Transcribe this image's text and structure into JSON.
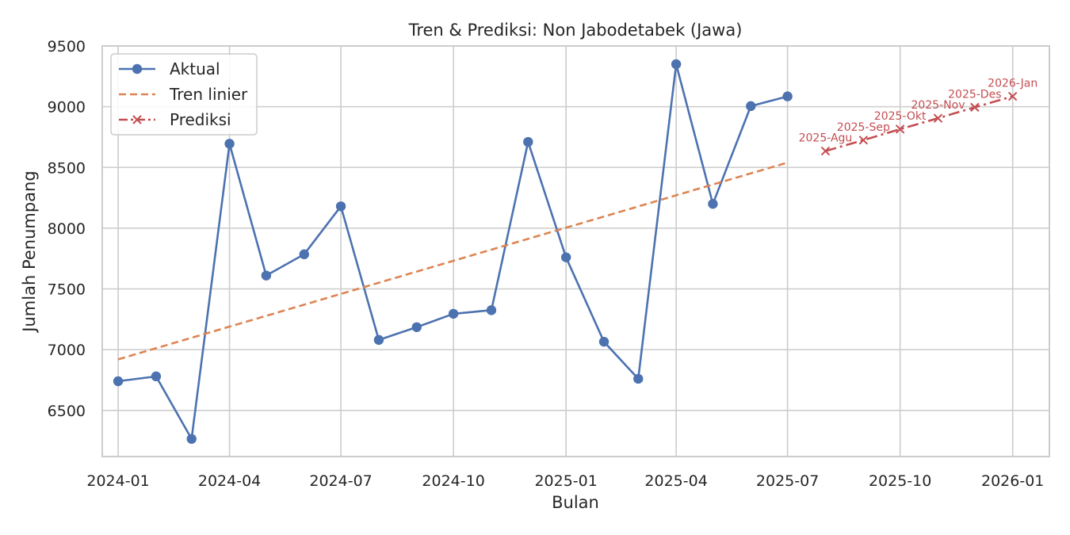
{
  "chart_data": {
    "type": "line",
    "title": "Tren & Prediksi: Non Jabodetabek (Jawa)",
    "xlabel": "Bulan",
    "ylabel": "Jumlah Penumpang",
    "ylim": [
      6120,
      9500
    ],
    "xlim": [
      "2023-12-19",
      "2026-01-31"
    ],
    "grid": true,
    "legend_position": "top-left",
    "x_ticks": [
      "2024-01",
      "2024-04",
      "2024-07",
      "2024-10",
      "2025-01",
      "2025-04",
      "2025-07",
      "2025-10",
      "2026-01"
    ],
    "y_ticks": [
      6500,
      7000,
      7500,
      8000,
      8500,
      9000,
      9500
    ],
    "series": [
      {
        "name": "Aktual",
        "style": "solid-marker-circle",
        "color": "#4c72b0",
        "x": [
          "2024-01",
          "2024-02",
          "2024-03",
          "2024-04",
          "2024-05",
          "2024-06",
          "2024-07",
          "2024-08",
          "2024-09",
          "2024-10",
          "2024-11",
          "2024-12",
          "2025-01",
          "2025-02",
          "2025-03",
          "2025-04",
          "2025-05",
          "2025-06",
          "2025-07"
        ],
        "values": [
          6740,
          6780,
          6265,
          8695,
          7610,
          7785,
          8180,
          7080,
          7185,
          7295,
          7325,
          8710,
          7760,
          7065,
          6760,
          9350,
          8200,
          9005,
          9085
        ]
      },
      {
        "name": "Tren linier",
        "style": "dashed",
        "color": "#dd8452",
        "x": [
          "2024-01",
          "2025-07"
        ],
        "values": [
          6920,
          8540
        ]
      },
      {
        "name": "Prediksi",
        "style": "dashdot-marker-x",
        "color": "#c44e52",
        "x": [
          "2025-08",
          "2025-09",
          "2025-10",
          "2025-11",
          "2025-12",
          "2026-01"
        ],
        "values": [
          8635,
          8725,
          8815,
          8905,
          8995,
          9085
        ],
        "labels": [
          "2025-Agu",
          "2025-Sep",
          "2025-Okt",
          "2025-Nov",
          "2025-Des",
          "2026-Jan"
        ]
      }
    ]
  }
}
